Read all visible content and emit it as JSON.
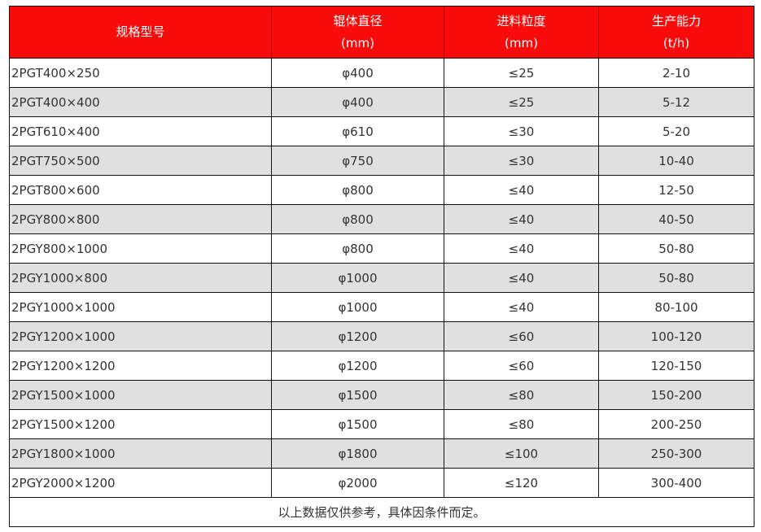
{
  "colors": {
    "header_bg": "#f90b0b",
    "alt_row_bg": "#e0e0e0"
  },
  "headers": [
    {
      "line1": "规格型号",
      "line2": ""
    },
    {
      "line1": "辊体直径",
      "line2": "(mm)"
    },
    {
      "line1": "进料粒度",
      "line2": "(mm)"
    },
    {
      "line1": "生产能力",
      "line2": "(t/h)"
    }
  ],
  "rows": [
    [
      "2PGT400×250",
      "φ400",
      "≤25",
      "2-10"
    ],
    [
      "2PGT400×400",
      "φ400",
      "≤25",
      "5-12"
    ],
    [
      "2PGT610×400",
      "φ610",
      "≤30",
      "5-20"
    ],
    [
      "2PGT750×500",
      "φ750",
      "≤30",
      "10-40"
    ],
    [
      "2PGT800×600",
      "φ800",
      "≤40",
      "12-50"
    ],
    [
      "2PGY800×800",
      "φ800",
      "≤40",
      "40-50"
    ],
    [
      "2PGY800×1000",
      "φ800",
      "≤40",
      "50-80"
    ],
    [
      "2PGY1000×800",
      "φ1000",
      "≤40",
      "50-80"
    ],
    [
      "2PGY1000×1000",
      "φ1000",
      "≤40",
      "80-100"
    ],
    [
      "2PGY1200×1000",
      "φ1200",
      "≤60",
      "100-120"
    ],
    [
      "2PGY1200×1200",
      "φ1200",
      "≤60",
      "120-150"
    ],
    [
      "2PGY1500×1000",
      "φ1500",
      "≤80",
      "150-200"
    ],
    [
      "2PGY1500×1200",
      "φ1500",
      "≤80",
      "200-250"
    ],
    [
      "2PGY1800×1000",
      "φ1800",
      "≤100",
      "250-300"
    ],
    [
      "2PGY2000×1200",
      "φ2000",
      "≤120",
      "300-400"
    ]
  ],
  "footer_note": "以上数据仅供参考，具体因条件而定。"
}
